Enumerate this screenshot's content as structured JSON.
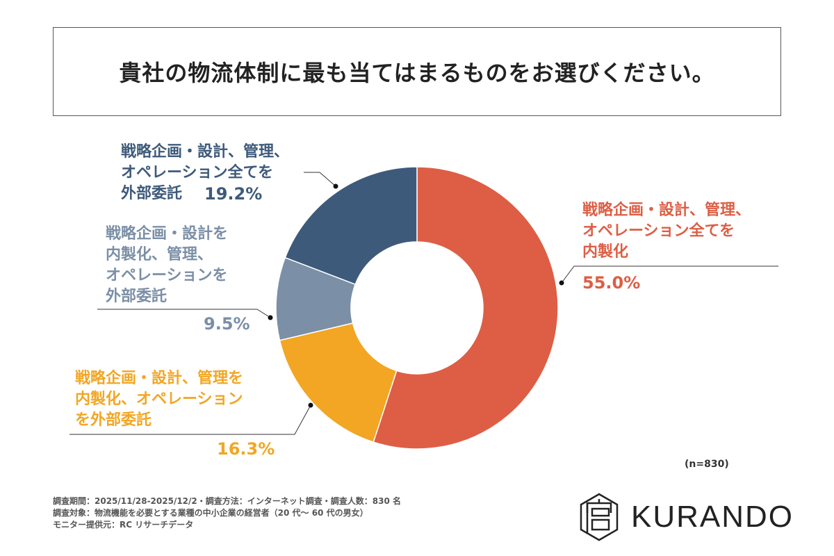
{
  "title": "貴社の物流体制に最も当てはまるものをお選びください。",
  "chart_data": {
    "type": "pie",
    "donut": true,
    "title": "貴社の物流体制に最も当てはまるものをお選びください。",
    "categories": [
      "戦略企画・設計、管理、オペレーション全てを内製化",
      "戦略企画・設計、管理を内製化、オペレーションを外部委託",
      "戦略企画・設計を内製化、管理、オペレーションを外部委託",
      "戦略企画・設計、管理、オペレーション全てを外部委託"
    ],
    "values": [
      55.0,
      16.3,
      9.5,
      19.2
    ],
    "value_labels": [
      "55.0%",
      "16.3%",
      "9.5%",
      "19.2%"
    ],
    "colors": [
      "#DD5E45",
      "#F2A623",
      "#7B8FA6",
      "#3E5A7A"
    ],
    "start": "top",
    "direction": "clockwise",
    "labels": [
      "戦略企画・設計、管理、\nオペレーション全てを\n内製化",
      "戦略企画・設計、管理を\n内製化、オペレーション\nを外部委託",
      "戦略企画・設計を\n内製化、管理、\nオペレーションを\n外部委託",
      "戦略企画・設計、管理、\nオペレーション全てを\n外部委託"
    ],
    "n_label": "(n=830)"
  },
  "notes": [
    "調査期間：2025/11/28-2025/12/2・調査方法：インターネット調査・調査人数：830 名",
    "調査対象：物流機能を必要とする業種の中小企業の経営者（20 代～ 60 代の男女）",
    "モニター提供元：RC リサーチデータ"
  ],
  "logo": "KURANDO"
}
